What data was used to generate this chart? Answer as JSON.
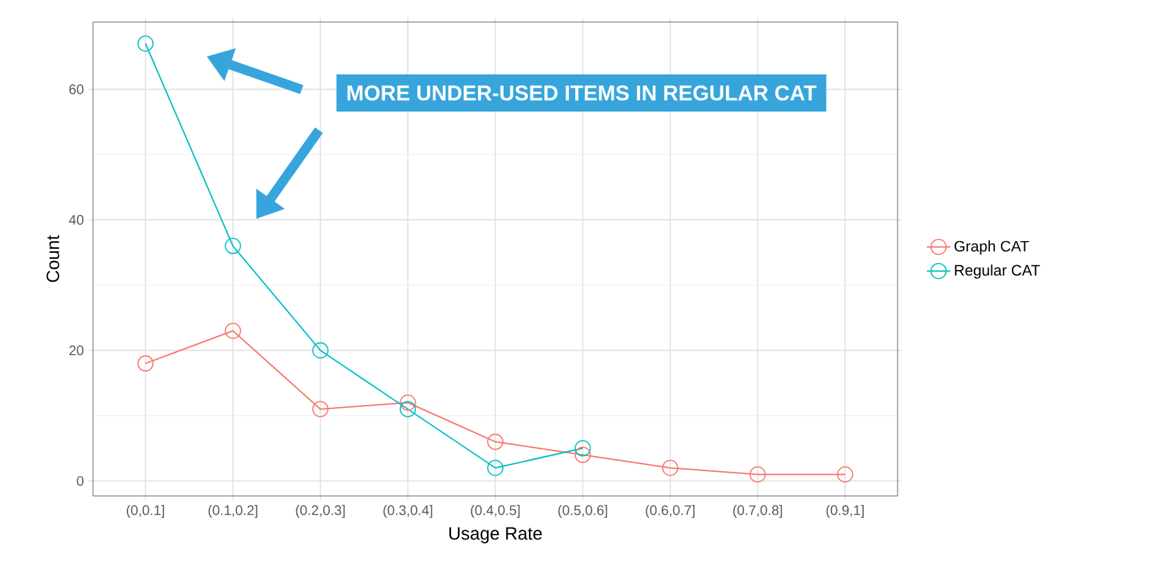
{
  "chart_data": {
    "type": "line",
    "xlabel": "Usage Rate",
    "ylabel": "Count",
    "categories": [
      "(0,0.1]",
      "(0.1,0.2]",
      "(0.2,0.3]",
      "(0.3,0.4]",
      "(0.4,0.5]",
      "(0.5,0.6]",
      "(0.6,0.7]",
      "(0.7,0.8]",
      "(0.9,1]"
    ],
    "series": [
      {
        "name": "Graph CAT",
        "color": "#f8766d",
        "values": [
          18,
          23,
          11,
          12,
          6,
          4,
          2,
          1,
          1
        ]
      },
      {
        "name": "Regular CAT",
        "color": "#00bfc4",
        "values": [
          67,
          36,
          20,
          11,
          2,
          5,
          null,
          null,
          null
        ]
      }
    ],
    "ylim": [
      -2.3,
      70.3
    ],
    "yticks": [
      0,
      20,
      40,
      60
    ],
    "grid": true,
    "legend": "right",
    "marker": "circle",
    "annotations": [
      "MORE UNDER-USED ITEMS IN REGULAR CAT"
    ]
  }
}
